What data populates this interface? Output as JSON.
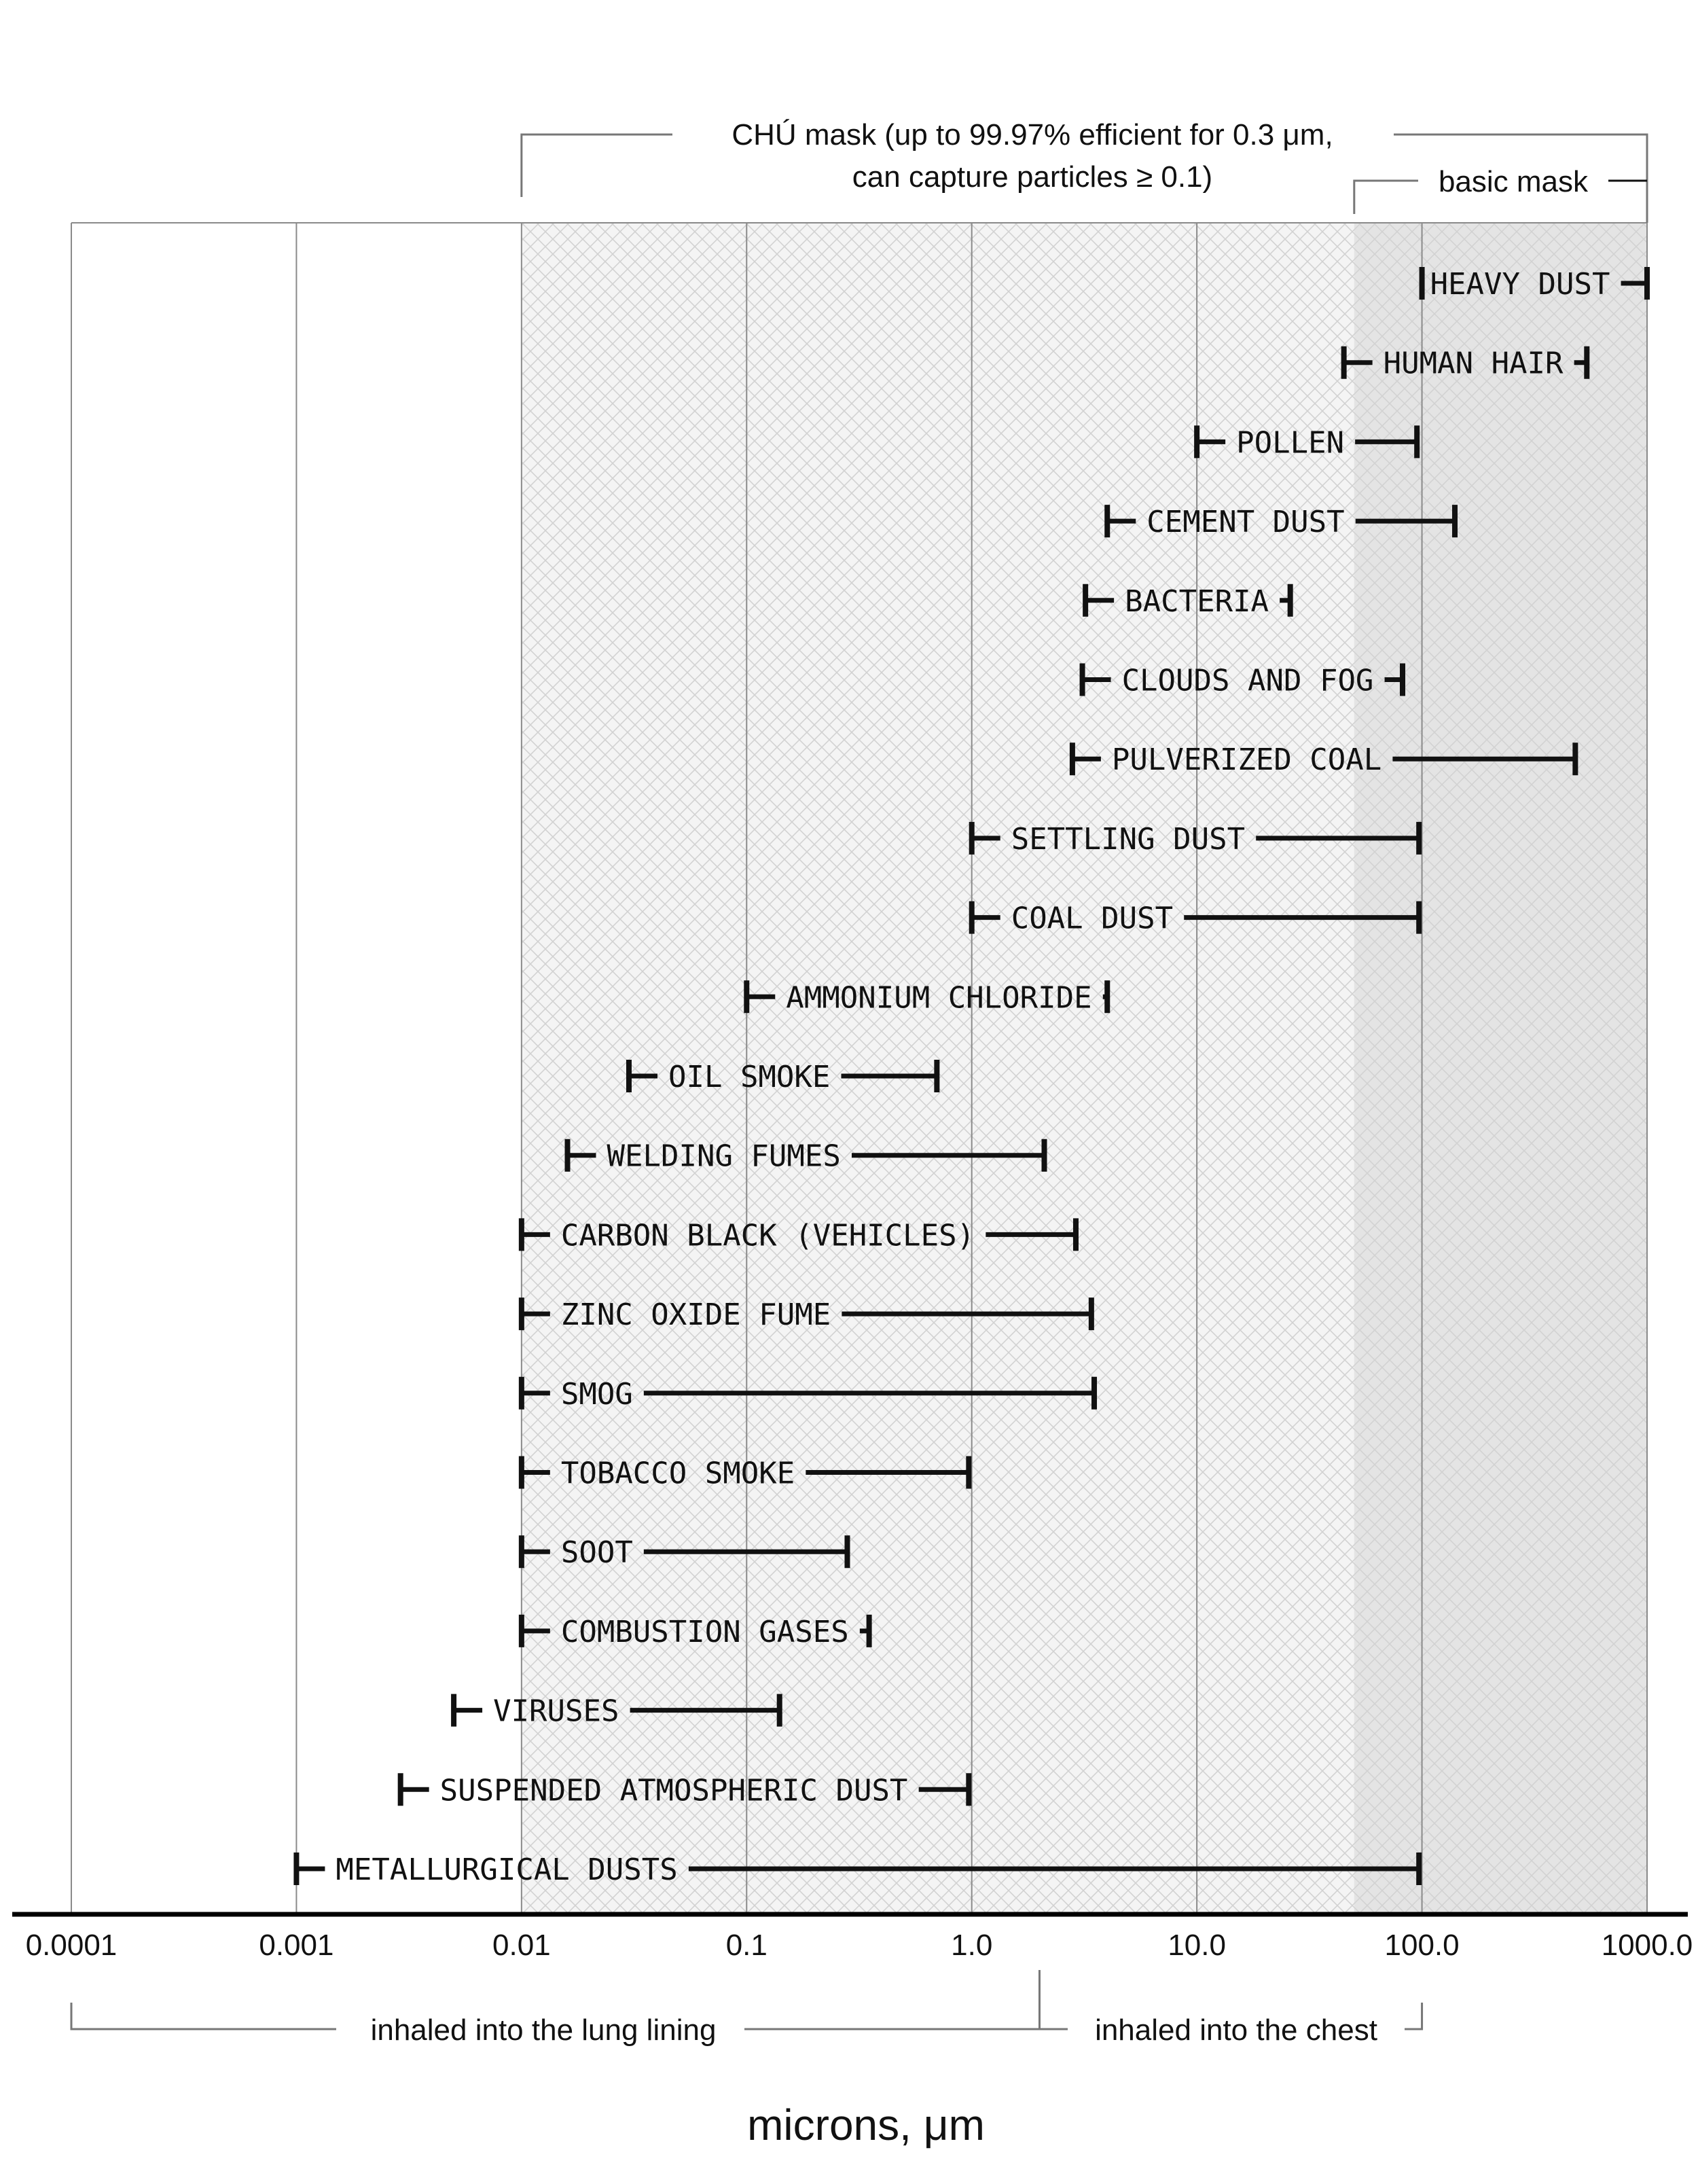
{
  "chart_data": {
    "type": "range_bar",
    "xscale": "log",
    "xlim": [
      0.0001,
      1000
    ],
    "xlabel": "microns, μm",
    "xticks": [
      {
        "value": 0.0001,
        "label": "0.0001"
      },
      {
        "value": 0.001,
        "label": "0.001"
      },
      {
        "value": 0.01,
        "label": "0.01"
      },
      {
        "value": 0.1,
        "label": "0.1"
      },
      {
        "value": 1,
        "label": "1.0"
      },
      {
        "value": 10,
        "label": "10.0"
      },
      {
        "value": 100,
        "label": "100.0"
      },
      {
        "value": 1000,
        "label": "1000.0"
      }
    ],
    "grid": true,
    "series": [
      {
        "name": "HEAVY DUST",
        "min": 100,
        "max": 1000
      },
      {
        "name": "HUMAN HAIR",
        "min": 45,
        "max": 540
      },
      {
        "name": "POLLEN",
        "min": 10,
        "max": 95
      },
      {
        "name": "CEMENT DUST",
        "min": 4,
        "max": 140
      },
      {
        "name": "BACTERIA",
        "min": 3.2,
        "max": 26
      },
      {
        "name": "CLOUDS AND FOG",
        "min": 3.1,
        "max": 82
      },
      {
        "name": "PULVERIZED COAL",
        "min": 2.8,
        "max": 480
      },
      {
        "name": "SETTLING DUST",
        "min": 1,
        "max": 97
      },
      {
        "name": "COAL DUST",
        "min": 1,
        "max": 97
      },
      {
        "name": "AMMONIUM CHLORIDE",
        "min": 0.1,
        "max": 4
      },
      {
        "name": "OIL SMOKE",
        "min": 0.03,
        "max": 0.7
      },
      {
        "name": "WELDING FUMES",
        "min": 0.016,
        "max": 2.1
      },
      {
        "name": "CARBON BLACK (VEHICLES)",
        "min": 0.01,
        "max": 2.9
      },
      {
        "name": "ZINC OXIDE FUME",
        "min": 0.01,
        "max": 3.4
      },
      {
        "name": "SMOG",
        "min": 0.01,
        "max": 3.5
      },
      {
        "name": "TOBACCO SMOKE",
        "min": 0.01,
        "max": 0.97
      },
      {
        "name": "SOOT",
        "min": 0.01,
        "max": 0.28
      },
      {
        "name": "COMBUSTION GASES",
        "min": 0.01,
        "max": 0.35
      },
      {
        "name": "VIRUSES",
        "min": 0.005,
        "max": 0.14
      },
      {
        "name": "SUSPENDED ATMOSPHERIC DUST",
        "min": 0.0029,
        "max": 0.97
      },
      {
        "name": "METALLURGICAL DUSTS",
        "min": 0.001,
        "max": 97
      }
    ],
    "regions": [
      {
        "name": "chu-mask",
        "from": 0.01,
        "to": 1000,
        "label_lines": [
          "CHÚ mask (up to 99.97% efficient for 0.3 μm,",
          "can capture particles ≥ 0.1)"
        ]
      },
      {
        "name": "basic-mask",
        "from": 50,
        "to": 1000,
        "label_lines": [
          "basic mask"
        ]
      }
    ],
    "bottom_brackets": [
      {
        "name": "lung-lining",
        "from": 0.0001,
        "to": 2,
        "label": "inhaled into the lung lining"
      },
      {
        "name": "chest",
        "from": 2,
        "to": 100,
        "label": "inhaled into the chest"
      }
    ]
  }
}
